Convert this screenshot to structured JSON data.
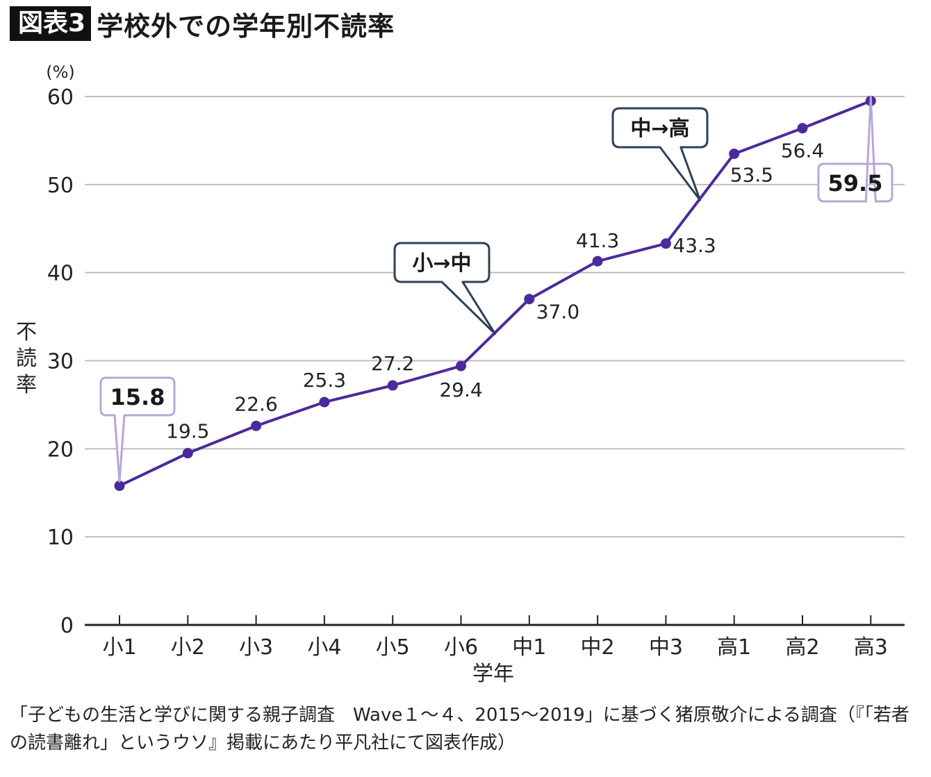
{
  "header": {
    "fig_label": "図表3",
    "title": "学校外での学年別不読率"
  },
  "source_text": "「子どもの生活と学びに関する親子調査　Wave１～４、2015～2019」に基づく猪原敬介による調査（『「若者の読書離れ」というウソ』掲載にあたり平凡社にて図表作成）",
  "chart_data": {
    "type": "line",
    "categories": [
      "小1",
      "小2",
      "小3",
      "小4",
      "小5",
      "小6",
      "中1",
      "中2",
      "中3",
      "高1",
      "高2",
      "高3"
    ],
    "series": [
      {
        "values": [
          15.8,
          19.5,
          22.6,
          25.3,
          27.2,
          29.4,
          37.0,
          41.3,
          43.3,
          53.5,
          56.4,
          59.5
        ]
      }
    ],
    "value_labels": [
      "15.8",
      "19.5",
      "22.6",
      "25.3",
      "27.2",
      "29.4",
      "37.0",
      "41.3",
      "43.3",
      "53.5",
      "56.4",
      "59.5"
    ],
    "highlighted": [
      0,
      11
    ],
    "transitions": [
      {
        "label": "小→中",
        "between": [
          5,
          6
        ]
      },
      {
        "label": "中→高",
        "between": [
          8,
          9
        ]
      }
    ],
    "yticks": [
      0,
      10,
      20,
      30,
      40,
      50,
      60
    ],
    "ylim": [
      0,
      60
    ],
    "ylabel": "不読率",
    "yunit": "(%)",
    "xlabel": "学年",
    "grid": true,
    "colors": {
      "line": "#4b2a9b",
      "highlight_border": "#b8a6d9",
      "callout_border": "#2e3f55",
      "grid": "#bdbdbd"
    }
  }
}
